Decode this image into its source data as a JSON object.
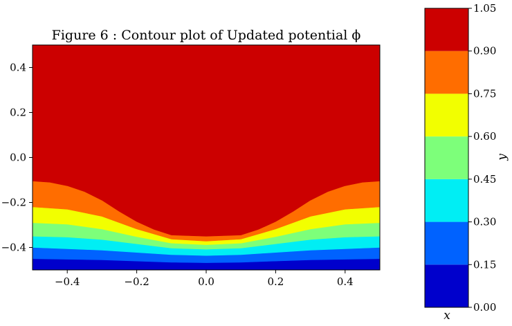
{
  "chart_data": {
    "type": "contourf",
    "title": "Figure 6 : Contour plot of Updated potential ϕ",
    "xlabel": "x",
    "ylabel": "y",
    "xlim": [
      -0.5,
      0.5
    ],
    "ylim": [
      -0.5,
      0.5
    ],
    "xticks": [
      -0.4,
      -0.2,
      0.0,
      0.2,
      0.4
    ],
    "xtick_labels": [
      "−0.4",
      "−0.2",
      "0.0",
      "0.2",
      "0.4"
    ],
    "yticks": [
      -0.4,
      -0.2,
      0.0,
      0.2,
      0.4
    ],
    "ytick_labels": [
      "−0.4",
      "−0.2",
      "0.0",
      "0.2",
      "0.4"
    ],
    "colorbar": {
      "levels": [
        0.0,
        0.15,
        0.3,
        0.45,
        0.6,
        0.75,
        0.9,
        1.05
      ],
      "tick_labels": [
        "0.00",
        "0.15",
        "0.30",
        "0.45",
        "0.60",
        "0.75",
        "0.90",
        "1.05"
      ],
      "colors": [
        "#0000cc",
        "#0062ff",
        "#00eef4",
        "#7dff7a",
        "#f2ff00",
        "#ff6d00",
        "#cc0000"
      ]
    },
    "level_boundaries": [
      {
        "level": 0.15,
        "x": [
          -0.5,
          -0.3,
          -0.1,
          0.0,
          0.1,
          0.3,
          0.5
        ],
        "y": [
          -0.45,
          -0.455,
          -0.466,
          -0.468,
          -0.466,
          -0.455,
          -0.45
        ]
      },
      {
        "level": 0.3,
        "x": [
          -0.5,
          -0.3,
          -0.1,
          0.0,
          0.1,
          0.3,
          0.5
        ],
        "y": [
          -0.4,
          -0.412,
          -0.432,
          -0.436,
          -0.432,
          -0.412,
          -0.4
        ]
      },
      {
        "level": 0.45,
        "x": [
          -0.5,
          -0.4,
          -0.3,
          -0.2,
          -0.1,
          0.0,
          0.1,
          0.2,
          0.3,
          0.4,
          0.5
        ],
        "y": [
          -0.35,
          -0.354,
          -0.365,
          -0.384,
          -0.403,
          -0.408,
          -0.403,
          -0.384,
          -0.365,
          -0.354,
          -0.35
        ]
      },
      {
        "level": 0.6,
        "x": [
          -0.5,
          -0.4,
          -0.3,
          -0.2,
          -0.1,
          0.0,
          0.1,
          0.2,
          0.3,
          0.4,
          0.5
        ],
        "y": [
          -0.29,
          -0.297,
          -0.318,
          -0.352,
          -0.381,
          -0.388,
          -0.381,
          -0.352,
          -0.318,
          -0.297,
          -0.29
        ]
      },
      {
        "level": 0.75,
        "x": [
          -0.5,
          -0.4,
          -0.3,
          -0.2,
          -0.1,
          0.0,
          0.1,
          0.2,
          0.3,
          0.4,
          0.5
        ],
        "y": [
          -0.22,
          -0.23,
          -0.262,
          -0.318,
          -0.363,
          -0.372,
          -0.363,
          -0.318,
          -0.262,
          -0.23,
          -0.22
        ]
      },
      {
        "level": 0.9,
        "x": [
          -0.5,
          -0.45,
          -0.4,
          -0.35,
          -0.3,
          -0.25,
          -0.2,
          -0.15,
          -0.1,
          0.0,
          0.1,
          0.15,
          0.2,
          0.25,
          0.3,
          0.35,
          0.4,
          0.45,
          0.5
        ],
        "y": [
          -0.105,
          -0.11,
          -0.126,
          -0.152,
          -0.19,
          -0.24,
          -0.285,
          -0.32,
          -0.345,
          -0.35,
          -0.345,
          -0.32,
          -0.285,
          -0.24,
          -0.19,
          -0.152,
          -0.126,
          -0.11,
          -0.105
        ]
      }
    ]
  }
}
